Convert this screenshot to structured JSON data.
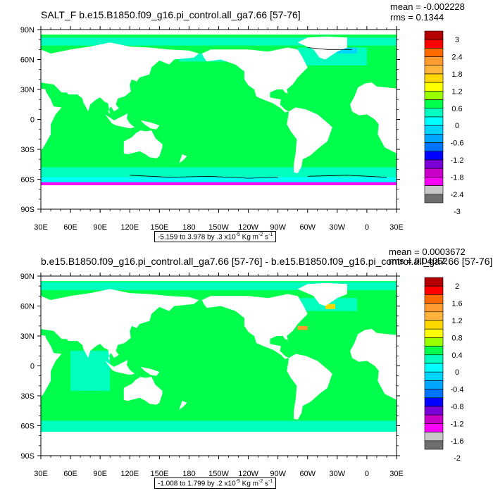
{
  "chart_data": [
    {
      "type": "heatmap",
      "title": "SALT_F b.e15.B1850.f09_g16.pi_control.all_ga7.66 [57-76]",
      "mean_text": "mean = -0.002228",
      "rms_text": "rms = 0.1344",
      "range_prefix": "-5.159 to 3.978 by .3 x10",
      "range_exp": "-5",
      "range_unit": " Kg m",
      "range_unit_exp": "-2",
      "range_unit2": " s",
      "range_unit2_exp": "-1",
      "lat_labels": [
        "90N",
        "60N",
        "30N",
        "0",
        "30S",
        "60S",
        "90S"
      ],
      "lon_labels": [
        "30E",
        "60E",
        "90E",
        "120E",
        "150E",
        "180",
        "150W",
        "120W",
        "90W",
        "60W",
        "30W",
        "0",
        "30E"
      ],
      "colorbar_levels": [
        "3",
        "2.4",
        "1.8",
        "1.2",
        "0.6",
        "0",
        "-0.6",
        "-1.2",
        "-1.8",
        "-2.4",
        "-3"
      ],
      "colorbar_colors": [
        "#b40000",
        "#ff0000",
        "#ff6a00",
        "#ff9b2f",
        "#ffb43c",
        "#ffd700",
        "#ffff00",
        "#99ff00",
        "#00ff4d",
        "#00ffbf",
        "#00ffff",
        "#00d5ff",
        "#00a5ff",
        "#0074ff",
        "#0000ff",
        "#7a00d8",
        "#c800c8",
        "#ff00ff",
        "#c8c8c8",
        "#6e6e6e"
      ],
      "ocean_color": "#00ff4d",
      "southern_band_color": "#00ffbf"
    },
    {
      "type": "heatmap",
      "title": "b.e15.B1850.f09_g16.pi_control.all_ga7.66 [57-76] - b.e15.B1850.f09_g16.pi_control.all_ga7.66 [57-76]",
      "mean_text": "mean = 0.0003672",
      "rms_text": "rms = 0.04052",
      "range_prefix": "-1.008 to 1.799 by .2 x10",
      "range_exp": "-5",
      "range_unit": " Kg m",
      "range_unit_exp": "-2",
      "range_unit2": " s",
      "range_unit2_exp": "-1",
      "lat_labels": [
        "90N",
        "60N",
        "30N",
        "0",
        "30S",
        "60S",
        "90S"
      ],
      "lon_labels": [
        "30E",
        "60E",
        "90E",
        "120E",
        "150E",
        "180",
        "150W",
        "120W",
        "90W",
        "60W",
        "30W",
        "0",
        "30E"
      ],
      "colorbar_levels": [
        "2",
        "1.6",
        "1.2",
        "0.8",
        "0.4",
        "0",
        "-0.4",
        "-0.8",
        "-1.2",
        "-1.6",
        "-2"
      ],
      "colorbar_colors": [
        "#b40000",
        "#ff0000",
        "#ff6a00",
        "#ff9b2f",
        "#ffb43c",
        "#ffd700",
        "#ffff00",
        "#99ff00",
        "#00ff4d",
        "#00ffbf",
        "#00ffff",
        "#00d5ff",
        "#00a5ff",
        "#0074ff",
        "#0000ff",
        "#7a00d8",
        "#c800c8",
        "#ff00ff",
        "#c8c8c8",
        "#6e6e6e"
      ],
      "ocean_color": "#00ff4d",
      "southern_band_color": "#00ffbf"
    }
  ]
}
